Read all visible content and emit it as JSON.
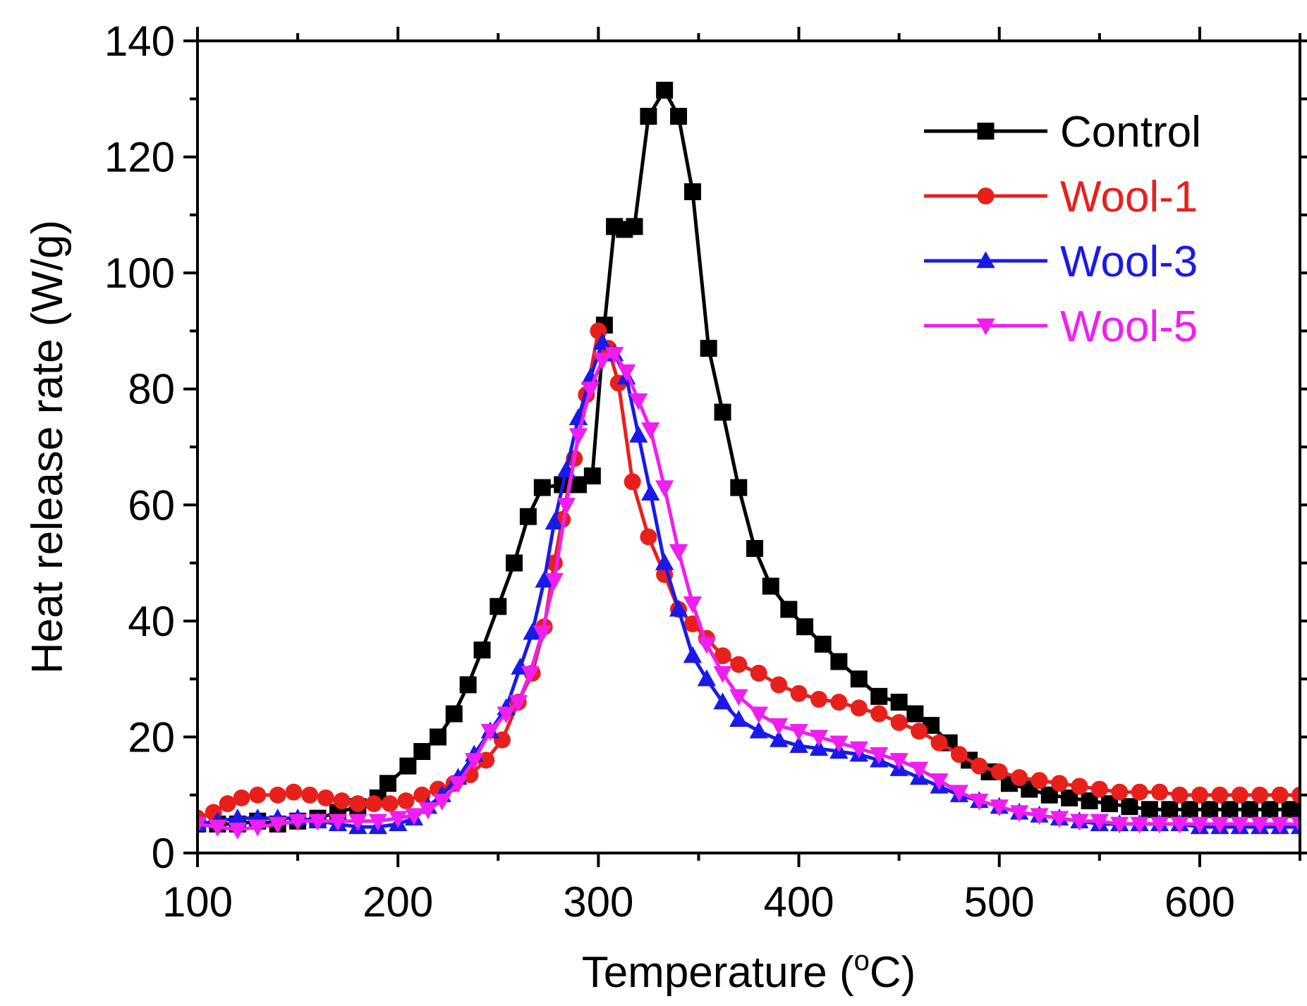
{
  "chart_data": {
    "type": "line",
    "title": "",
    "xlabel": "Temperature (",
    "xlabel_degree": "o",
    "xlabel_unit": "C)",
    "ylabel": "Heat release rate (W/g)",
    "xlim": [
      100,
      650
    ],
    "ylim": [
      0,
      140
    ],
    "x_ticks": [
      100,
      200,
      300,
      400,
      500,
      600
    ],
    "y_ticks": [
      0,
      20,
      40,
      60,
      80,
      100,
      120,
      140
    ],
    "grid": false,
    "legend_position": "top-right",
    "series": [
      {
        "name": "Control",
        "color": "#000000",
        "marker": "square",
        "points": [
          [
            100,
            5
          ],
          [
            110,
            5
          ],
          [
            120,
            5
          ],
          [
            130,
            5.5
          ],
          [
            140,
            5
          ],
          [
            150,
            5.5
          ],
          [
            160,
            6
          ],
          [
            170,
            7
          ],
          [
            180,
            8
          ],
          [
            190,
            9.5
          ],
          [
            195,
            12
          ],
          [
            205,
            15
          ],
          [
            212,
            17.5
          ],
          [
            220,
            20
          ],
          [
            228,
            24
          ],
          [
            235,
            29
          ],
          [
            242,
            35
          ],
          [
            250,
            42.5
          ],
          [
            258,
            50
          ],
          [
            265,
            58
          ],
          [
            272,
            63
          ],
          [
            282,
            63.5
          ],
          [
            290,
            63.5
          ],
          [
            297,
            65
          ],
          [
            303,
            91
          ],
          [
            308,
            108
          ],
          [
            313,
            107.5
          ],
          [
            318,
            108
          ],
          [
            325,
            127
          ],
          [
            333,
            131.5
          ],
          [
            340,
            127
          ],
          [
            347,
            114
          ],
          [
            355,
            87
          ],
          [
            362,
            76
          ],
          [
            370,
            63
          ],
          [
            378,
            52.5
          ],
          [
            386,
            46
          ],
          [
            395,
            42
          ],
          [
            403,
            39
          ],
          [
            412,
            36
          ],
          [
            420,
            33
          ],
          [
            430,
            30
          ],
          [
            440,
            27
          ],
          [
            450,
            26
          ],
          [
            458,
            24
          ],
          [
            466,
            22
          ],
          [
            475,
            19
          ],
          [
            485,
            16
          ],
          [
            495,
            14
          ],
          [
            505,
            12
          ],
          [
            515,
            11
          ],
          [
            525,
            10
          ],
          [
            535,
            9.5
          ],
          [
            545,
            9
          ],
          [
            555,
            8.5
          ],
          [
            565,
            8
          ],
          [
            575,
            7.5
          ],
          [
            585,
            7.5
          ],
          [
            595,
            7.5
          ],
          [
            605,
            7.5
          ],
          [
            615,
            7.5
          ],
          [
            625,
            7.5
          ],
          [
            635,
            7.5
          ],
          [
            645,
            7.5
          ],
          [
            650,
            7.5
          ]
        ]
      },
      {
        "name": "Wool-1",
        "color": "#e8201c",
        "marker": "circle",
        "points": [
          [
            100,
            6
          ],
          [
            108,
            7
          ],
          [
            115,
            8.5
          ],
          [
            122,
            9.5
          ],
          [
            130,
            10
          ],
          [
            140,
            10
          ],
          [
            148,
            10.5
          ],
          [
            156,
            10
          ],
          [
            164,
            9.5
          ],
          [
            172,
            9
          ],
          [
            180,
            8.5
          ],
          [
            188,
            8.5
          ],
          [
            196,
            8.5
          ],
          [
            204,
            9
          ],
          [
            212,
            10
          ],
          [
            220,
            11
          ],
          [
            228,
            12
          ],
          [
            236,
            13.5
          ],
          [
            244,
            16
          ],
          [
            252,
            19.5
          ],
          [
            260,
            26
          ],
          [
            267,
            31
          ],
          [
            273,
            39
          ],
          [
            278,
            50
          ],
          [
            282,
            57.5
          ],
          [
            288,
            68
          ],
          [
            294,
            79
          ],
          [
            300,
            90
          ],
          [
            305,
            87
          ],
          [
            310,
            81
          ],
          [
            317,
            64
          ],
          [
            325,
            54.5
          ],
          [
            333,
            48
          ],
          [
            340,
            42
          ],
          [
            347,
            39.5
          ],
          [
            354,
            37
          ],
          [
            362,
            34
          ],
          [
            370,
            32.5
          ],
          [
            380,
            31
          ],
          [
            390,
            29
          ],
          [
            400,
            27.5
          ],
          [
            410,
            26.5
          ],
          [
            420,
            26
          ],
          [
            430,
            25
          ],
          [
            440,
            24
          ],
          [
            450,
            22.5
          ],
          [
            460,
            21
          ],
          [
            470,
            19
          ],
          [
            480,
            17
          ],
          [
            490,
            15
          ],
          [
            500,
            14
          ],
          [
            510,
            13
          ],
          [
            520,
            12.5
          ],
          [
            530,
            12
          ],
          [
            540,
            11.5
          ],
          [
            550,
            11
          ],
          [
            560,
            10.5
          ],
          [
            570,
            10.5
          ],
          [
            580,
            10.5
          ],
          [
            590,
            10
          ],
          [
            600,
            10
          ],
          [
            610,
            10
          ],
          [
            620,
            10
          ],
          [
            630,
            10
          ],
          [
            640,
            10
          ],
          [
            650,
            10
          ]
        ]
      },
      {
        "name": "Wool-3",
        "color": "#1a1ae8",
        "marker": "triangle-up",
        "points": [
          [
            100,
            5
          ],
          [
            110,
            5.5
          ],
          [
            120,
            6
          ],
          [
            130,
            6
          ],
          [
            140,
            6
          ],
          [
            150,
            6
          ],
          [
            160,
            5.5
          ],
          [
            170,
            5
          ],
          [
            180,
            4.5
          ],
          [
            190,
            4.5
          ],
          [
            200,
            5
          ],
          [
            208,
            6
          ],
          [
            215,
            8
          ],
          [
            222,
            10
          ],
          [
            230,
            13
          ],
          [
            238,
            17
          ],
          [
            246,
            21
          ],
          [
            254,
            25
          ],
          [
            261,
            32
          ],
          [
            267,
            38
          ],
          [
            273,
            47
          ],
          [
            278,
            57
          ],
          [
            284,
            66
          ],
          [
            290,
            75
          ],
          [
            296,
            82
          ],
          [
            302,
            88
          ],
          [
            308,
            86
          ],
          [
            314,
            82
          ],
          [
            320,
            72
          ],
          [
            326,
            62
          ],
          [
            333,
            50
          ],
          [
            340,
            42
          ],
          [
            347,
            34
          ],
          [
            354,
            30
          ],
          [
            362,
            26
          ],
          [
            370,
            23
          ],
          [
            380,
            21
          ],
          [
            390,
            19.5
          ],
          [
            400,
            18.5
          ],
          [
            410,
            18
          ],
          [
            420,
            17.5
          ],
          [
            430,
            17
          ],
          [
            440,
            16
          ],
          [
            450,
            14.5
          ],
          [
            460,
            13
          ],
          [
            470,
            11.5
          ],
          [
            480,
            10
          ],
          [
            490,
            9
          ],
          [
            500,
            8
          ],
          [
            510,
            7
          ],
          [
            520,
            6.5
          ],
          [
            530,
            6
          ],
          [
            540,
            5.5
          ],
          [
            550,
            5
          ],
          [
            560,
            5
          ],
          [
            570,
            5
          ],
          [
            580,
            5
          ],
          [
            590,
            5
          ],
          [
            600,
            4.5
          ],
          [
            610,
            4.5
          ],
          [
            620,
            4.5
          ],
          [
            630,
            4.5
          ],
          [
            640,
            4.5
          ],
          [
            650,
            4.5
          ]
        ]
      },
      {
        "name": "Wool-5",
        "color": "#f01ef0",
        "marker": "triangle-down",
        "points": [
          [
            100,
            5
          ],
          [
            110,
            4.5
          ],
          [
            120,
            4
          ],
          [
            130,
            4.5
          ],
          [
            140,
            5
          ],
          [
            150,
            5.5
          ],
          [
            160,
            5.5
          ],
          [
            170,
            5.5
          ],
          [
            180,
            5.5
          ],
          [
            190,
            5.5
          ],
          [
            200,
            6
          ],
          [
            208,
            6.5
          ],
          [
            215,
            7.5
          ],
          [
            222,
            9
          ],
          [
            230,
            12
          ],
          [
            238,
            16
          ],
          [
            246,
            21
          ],
          [
            254,
            24
          ],
          [
            260,
            26
          ],
          [
            266,
            31
          ],
          [
            272,
            38
          ],
          [
            278,
            47
          ],
          [
            284,
            60
          ],
          [
            290,
            72
          ],
          [
            296,
            80
          ],
          [
            302,
            85
          ],
          [
            308,
            86
          ],
          [
            314,
            83
          ],
          [
            320,
            78
          ],
          [
            326,
            73
          ],
          [
            333,
            63
          ],
          [
            340,
            52
          ],
          [
            347,
            43
          ],
          [
            354,
            36
          ],
          [
            362,
            31
          ],
          [
            370,
            27
          ],
          [
            380,
            24
          ],
          [
            390,
            22
          ],
          [
            400,
            21
          ],
          [
            410,
            20
          ],
          [
            420,
            19
          ],
          [
            430,
            18
          ],
          [
            440,
            17
          ],
          [
            450,
            16
          ],
          [
            460,
            14.5
          ],
          [
            470,
            12.5
          ],
          [
            480,
            10.5
          ],
          [
            490,
            9
          ],
          [
            500,
            8
          ],
          [
            510,
            7
          ],
          [
            520,
            6.5
          ],
          [
            530,
            6
          ],
          [
            540,
            5.5
          ],
          [
            550,
            5.5
          ],
          [
            560,
            5
          ],
          [
            570,
            5
          ],
          [
            580,
            5
          ],
          [
            590,
            5
          ],
          [
            600,
            5
          ],
          [
            610,
            5
          ],
          [
            620,
            5
          ],
          [
            630,
            5
          ],
          [
            640,
            5
          ],
          [
            650,
            5
          ]
        ]
      }
    ]
  }
}
